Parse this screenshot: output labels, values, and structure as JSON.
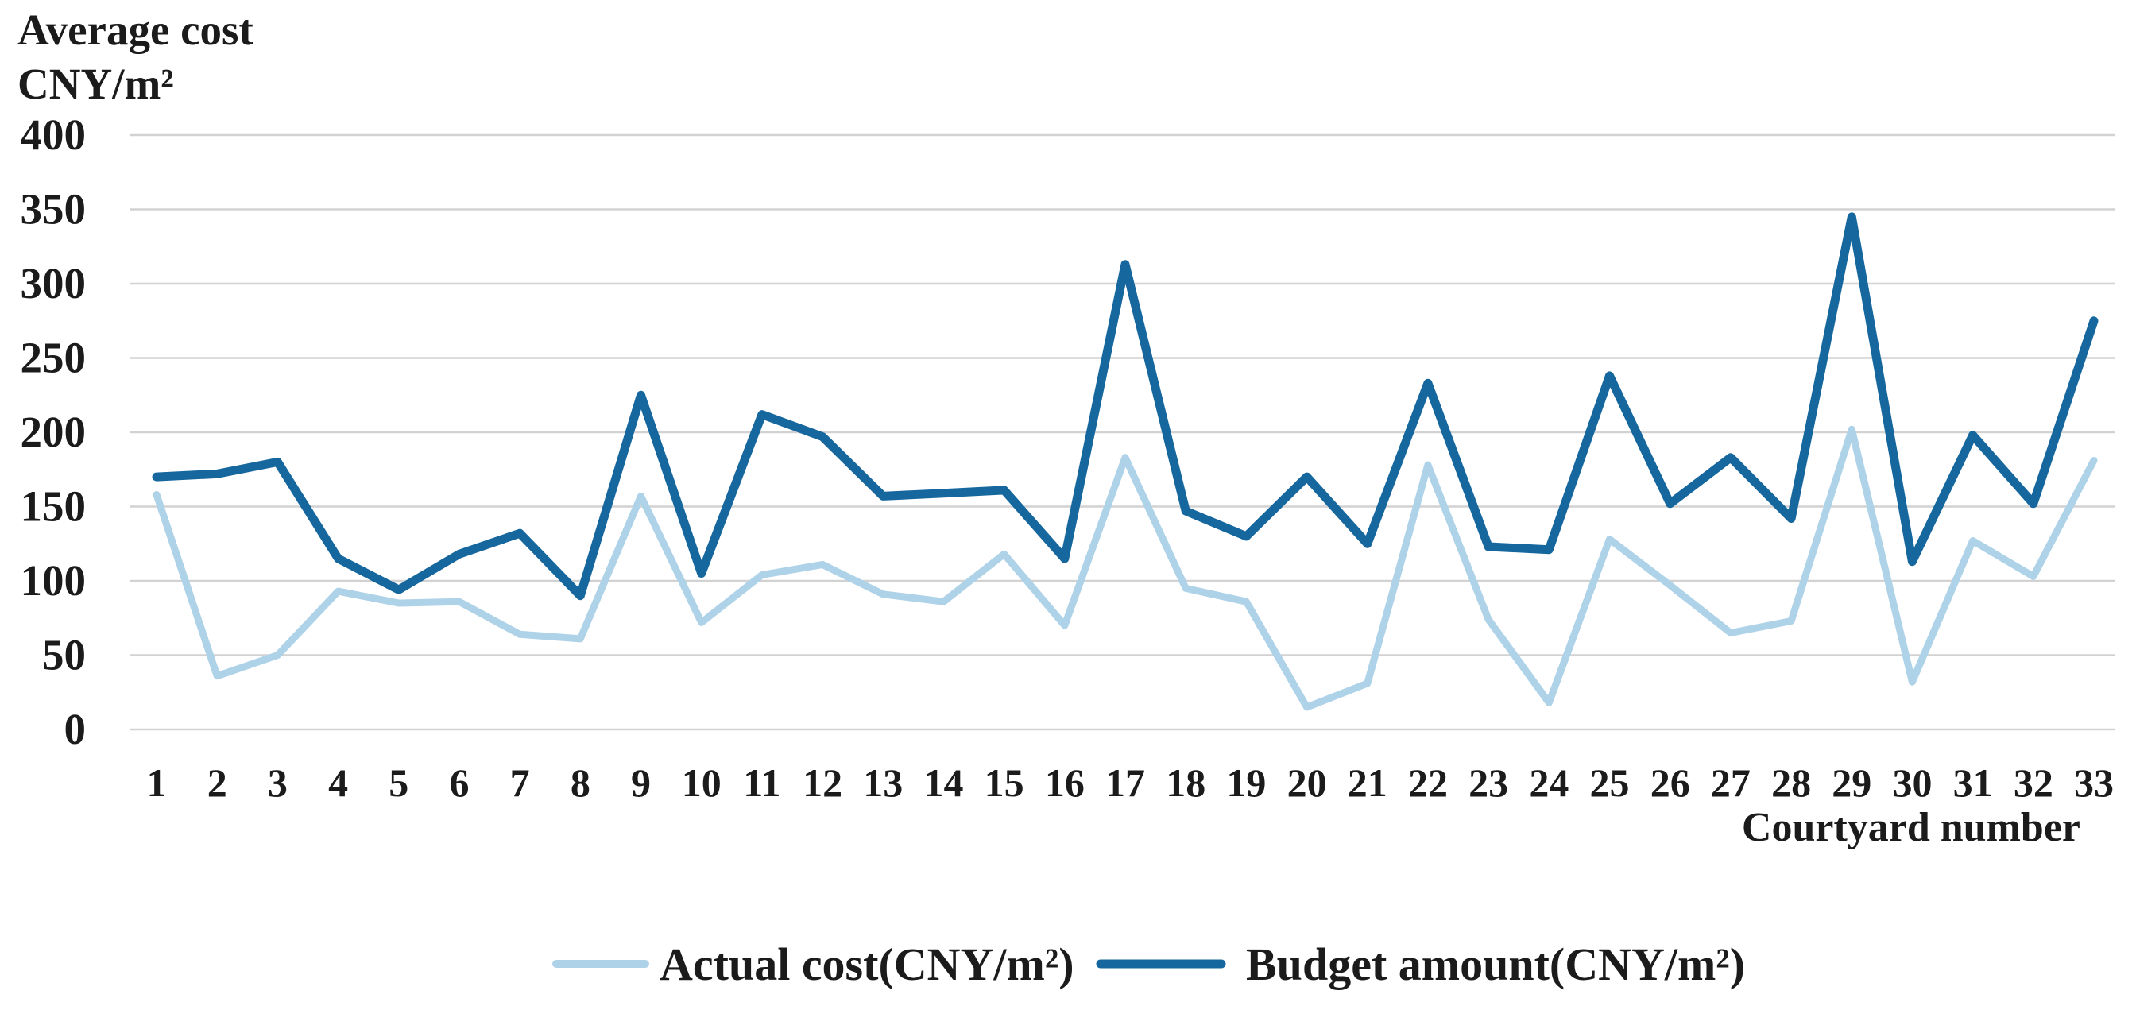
{
  "chart_data": {
    "type": "line",
    "title_lines": [
      "Average cost",
      "CNY/m²"
    ],
    "xlabel": "Courtyard number",
    "ylabel": "Average cost CNY/m²",
    "categories": [
      1,
      2,
      3,
      4,
      5,
      6,
      7,
      8,
      9,
      10,
      11,
      12,
      13,
      14,
      15,
      16,
      17,
      18,
      19,
      20,
      21,
      22,
      23,
      24,
      25,
      26,
      27,
      28,
      29,
      30,
      31,
      32,
      33
    ],
    "y_ticks": [
      0,
      50,
      100,
      150,
      200,
      250,
      300,
      350,
      400
    ],
    "ylim": [
      0,
      400
    ],
    "grid": "horizontal",
    "grid_color": "#d2d2d2",
    "legend_position": "bottom",
    "text_color": "#1b1b1b",
    "series": [
      {
        "name": "Actual cost(CNY/m²)",
        "color": "#aed2e8",
        "stroke_width": 9,
        "values": [
          158,
          36,
          50,
          93,
          85,
          86,
          64,
          61,
          157,
          72,
          104,
          111,
          91,
          86,
          118,
          70,
          183,
          95,
          86,
          15,
          31,
          178,
          74,
          18,
          128,
          97,
          65,
          73,
          202,
          32,
          127,
          103,
          181
        ]
      },
      {
        "name": "Budget amount(CNY/m²)",
        "color": "#15679e",
        "stroke_width": 11,
        "values": [
          170,
          172,
          180,
          115,
          94,
          118,
          132,
          90,
          225,
          105,
          212,
          197,
          157,
          159,
          161,
          115,
          313,
          147,
          130,
          170,
          125,
          233,
          123,
          121,
          238,
          152,
          183,
          142,
          345,
          113,
          198,
          152,
          275
        ]
      }
    ]
  }
}
